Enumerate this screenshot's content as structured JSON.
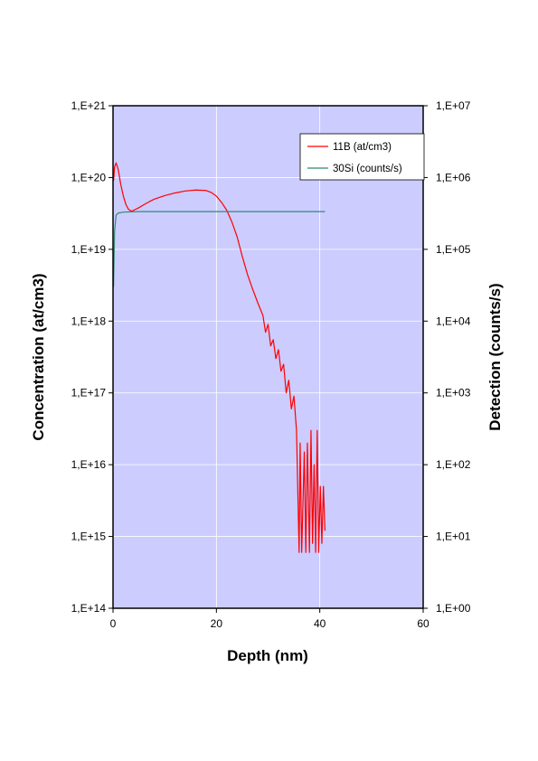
{
  "chart_data": {
    "type": "line",
    "xlabel": "Depth (nm)",
    "ylabel": "Concentration (at/cm3)",
    "y2label": "Detection (counts/s)",
    "xlim": [
      0,
      60
    ],
    "ylim": [
      100000000000000.0,
      1e+21
    ],
    "y2lim": [
      1,
      10000000
    ],
    "y_scale": "log",
    "y2_scale": "log",
    "x_ticks": [
      0,
      20,
      40,
      60
    ],
    "x_tick_labels": [
      "0",
      "20",
      "40",
      "60"
    ],
    "y_ticks": [
      100000000000000.0,
      1000000000000000.0,
      1e+16,
      1e+17,
      1e+18,
      1e+19,
      1e+20,
      1e+21
    ],
    "y_tick_labels": [
      "1,E+14",
      "1,E+15",
      "1,E+16",
      "1,E+17",
      "1,E+18",
      "1,E+19",
      "1,E+20",
      "1,E+21"
    ],
    "y2_ticks": [
      1,
      10,
      100,
      1000,
      10000,
      100000,
      1000000,
      10000000
    ],
    "y2_tick_labels": [
      "1,E+00",
      "1,E+01",
      "1,E+02",
      "1,E+03",
      "1,E+04",
      "1,E+05",
      "1,E+06",
      "1,E+07"
    ],
    "grid": true,
    "legend_position": "top-right",
    "plot_background": "#ccccff",
    "series": [
      {
        "name": "11B (at/cm3)",
        "axis": "left",
        "color": "#ff0000",
        "points": [
          [
            0.1,
            9e+19
          ],
          [
            0.3,
            1.4e+20
          ],
          [
            0.6,
            1.6e+20
          ],
          [
            1.0,
            1.3e+20
          ],
          [
            1.5,
            8e+19
          ],
          [
            2.0,
            5.5e+19
          ],
          [
            2.5,
            4.2e+19
          ],
          [
            3.0,
            3.6e+19
          ],
          [
            3.5,
            3.4e+19
          ],
          [
            4.0,
            3.5e+19
          ],
          [
            5.0,
            3.8e+19
          ],
          [
            6.0,
            4.2e+19
          ],
          [
            7.0,
            4.6e+19
          ],
          [
            8.0,
            5e+19
          ],
          [
            10.0,
            5.6e+19
          ],
          [
            12.0,
            6.1e+19
          ],
          [
            14.0,
            6.5e+19
          ],
          [
            16.0,
            6.7e+19
          ],
          [
            18.0,
            6.6e+19
          ],
          [
            19.0,
            6.2e+19
          ],
          [
            20.0,
            5.5e+19
          ],
          [
            21.0,
            4.5e+19
          ],
          [
            22.0,
            3.5e+19
          ],
          [
            23.0,
            2.4e+19
          ],
          [
            24.0,
            1.5e+19
          ],
          [
            25.0,
            8e+18
          ],
          [
            26.0,
            4.5e+18
          ],
          [
            27.0,
            2.8e+18
          ],
          [
            28.0,
            1.8e+18
          ],
          [
            29.0,
            1.2e+18
          ],
          [
            29.5,
            7e+17
          ],
          [
            30.0,
            9e+17
          ],
          [
            30.5,
            4.5e+17
          ],
          [
            31.0,
            5.5e+17
          ],
          [
            31.5,
            3e+17
          ],
          [
            32.0,
            4e+17
          ],
          [
            32.5,
            2e+17
          ],
          [
            33.0,
            2.5e+17
          ],
          [
            33.5,
            1e+17
          ],
          [
            34.0,
            1.5e+17
          ],
          [
            34.5,
            6e+16
          ],
          [
            35.0,
            9e+16
          ],
          [
            35.5,
            3e+16
          ],
          [
            36.0,
            600000000000000.0
          ],
          [
            36.2,
            2e+16
          ],
          [
            36.5,
            600000000000000.0
          ],
          [
            37.0,
            1.5e+16
          ],
          [
            37.3,
            600000000000000.0
          ],
          [
            37.6,
            2e+16
          ],
          [
            38.0,
            600000000000000.0
          ],
          [
            38.3,
            3e+16
          ],
          [
            38.6,
            800000000000000.0
          ],
          [
            38.9,
            1e+16
          ],
          [
            39.2,
            600000000000000.0
          ],
          [
            39.5,
            3e+16
          ],
          [
            39.8,
            600000000000000.0
          ],
          [
            40.1,
            5000000000000000.0
          ],
          [
            40.4,
            800000000000000.0
          ],
          [
            40.7,
            5000000000000000.0
          ],
          [
            41.0,
            1200000000000000.0
          ]
        ]
      },
      {
        "name": "30Si (counts/s)",
        "axis": "right",
        "color": "#2e8b74",
        "points": [
          [
            0.1,
            30000.0
          ],
          [
            0.3,
            180000.0
          ],
          [
            0.6,
            300000.0
          ],
          [
            1.0,
            320000.0
          ],
          [
            2.0,
            330000.0
          ],
          [
            5.0,
            335000.0
          ],
          [
            10.0,
            335000.0
          ],
          [
            20.0,
            335000.0
          ],
          [
            30.0,
            335000.0
          ],
          [
            41.0,
            335000.0
          ]
        ]
      }
    ]
  }
}
